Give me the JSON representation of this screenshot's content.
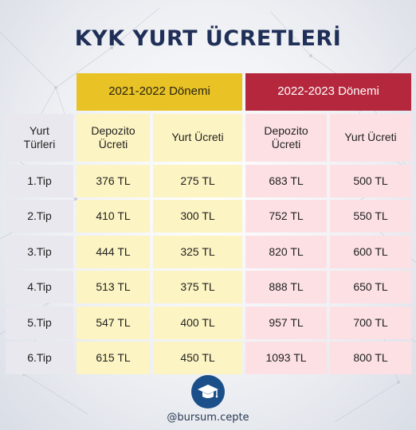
{
  "title": "KYK YURT ÜCRETLERİ",
  "periods": [
    "2021-2022 Dönemi",
    "2022-2023 Dönemi"
  ],
  "headers": {
    "type": "Yurt\nTürleri",
    "deposit": "Depozito\nÜcreti",
    "fee": "Yurt Ücreti"
  },
  "rows": [
    {
      "type": "1.Tip",
      "dep1": "376 TL",
      "fee1": "275 TL",
      "dep2": "683 TL",
      "fee2": "500 TL"
    },
    {
      "type": "2.Tip",
      "dep1": "410 TL",
      "fee1": "300 TL",
      "dep2": "752 TL",
      "fee2": "550 TL"
    },
    {
      "type": "3.Tip",
      "dep1": "444 TL",
      "fee1": "325 TL",
      "dep2": "820 TL",
      "fee2": "600 TL"
    },
    {
      "type": "4.Tip",
      "dep1": "513 TL",
      "fee1": "375 TL",
      "dep2": "888 TL",
      "fee2": "650 TL"
    },
    {
      "type": "5.Tip",
      "dep1": "547 TL",
      "fee1": "400 TL",
      "dep2": "957 TL",
      "fee2": "700 TL"
    },
    {
      "type": "6.Tip",
      "dep1": "615 TL",
      "fee1": "450 TL",
      "dep2": "1093 TL",
      "fee2": "800 TL"
    }
  ],
  "handle": "@bursum.cepte",
  "icons": {
    "logo": "graduation-cap-icon"
  },
  "colors": {
    "title": "#1f2f57",
    "period1": "#e9c326",
    "period2": "#b5273d",
    "typeCol": "#e8e8ee",
    "period1Cells": "#fcf4c2",
    "period2Cells": "#fde0e4"
  }
}
